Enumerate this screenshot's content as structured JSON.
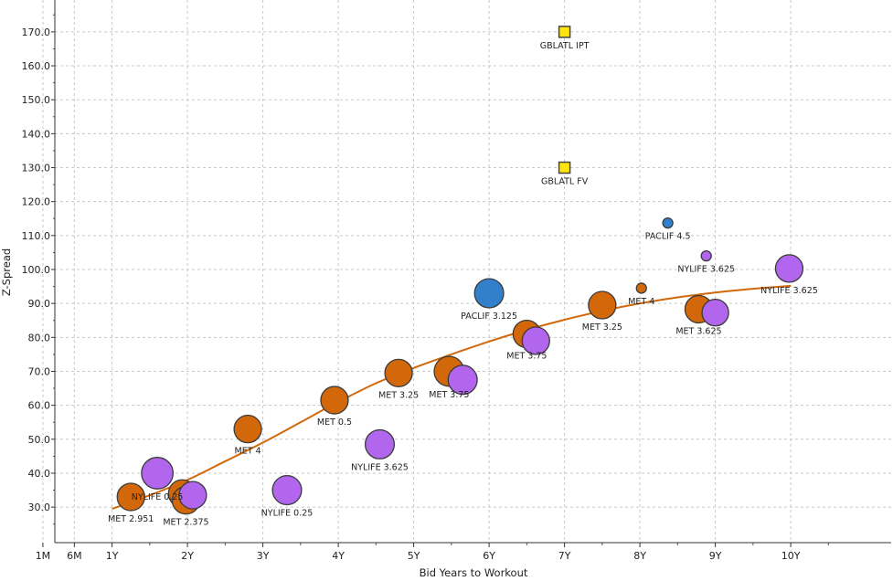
{
  "chart_data": {
    "type": "scatter",
    "title": "",
    "xlabel": "Bid Years to Workout",
    "ylabel": "Z-Spread",
    "ylim": [
      20,
      180
    ],
    "xlim": [
      0,
      10.9
    ],
    "x_ticks": [
      {
        "value": 0.083,
        "label": "1M"
      },
      {
        "value": 0.5,
        "label": "6M"
      },
      {
        "value": 1,
        "label": "1Y"
      },
      {
        "value": 2,
        "label": "2Y"
      },
      {
        "value": 3,
        "label": "3Y"
      },
      {
        "value": 4,
        "label": "4Y"
      },
      {
        "value": 5,
        "label": "5Y"
      },
      {
        "value": 6,
        "label": "6Y"
      },
      {
        "value": 7,
        "label": "7Y"
      },
      {
        "value": 8,
        "label": "8Y"
      },
      {
        "value": 9,
        "label": "9Y"
      },
      {
        "value": 10,
        "label": "10Y"
      }
    ],
    "y_ticks": [
      {
        "value": 30,
        "label": "30.0"
      },
      {
        "value": 40,
        "label": "40.0"
      },
      {
        "value": 50,
        "label": "50.0"
      },
      {
        "value": 60,
        "label": "60.0"
      },
      {
        "value": 70,
        "label": "70.0"
      },
      {
        "value": 80,
        "label": "80.0"
      },
      {
        "value": 90,
        "label": "90.0"
      },
      {
        "value": 100,
        "label": "100.0"
      },
      {
        "value": 110,
        "label": "110.0"
      },
      {
        "value": 120,
        "label": "120.0"
      },
      {
        "value": 130,
        "label": "130.0"
      },
      {
        "value": 140,
        "label": "140.0"
      },
      {
        "value": 150,
        "label": "150.0"
      },
      {
        "value": 160,
        "label": "160.0"
      },
      {
        "value": 170,
        "label": "170.0"
      }
    ],
    "grid": true,
    "colors": {
      "MET": "#d2680a",
      "NYLIFE": "#b266ee",
      "PACLIF": "#3280cc",
      "GBLATL": "#ffe40f",
      "curve": "#d2680a",
      "grid": "#c8c8c8"
    },
    "series": [
      {
        "issuer": "MET",
        "marker": "circle",
        "points": [
          {
            "x": 1.25,
            "y": 33,
            "size": 2,
            "label": "MET 2.951"
          },
          {
            "x": 1.93,
            "y": 34,
            "size": 2,
            "label": ""
          },
          {
            "x": 1.98,
            "y": 32,
            "size": 2,
            "label": "MET 2.375"
          },
          {
            "x": 2.8,
            "y": 53,
            "size": 2,
            "label": "MET 4"
          },
          {
            "x": 3.95,
            "y": 61.5,
            "size": 2,
            "label": "MET 0.5"
          },
          {
            "x": 4.8,
            "y": 69.5,
            "size": 2,
            "label": "MET 3.25"
          },
          {
            "x": 5.47,
            "y": 70,
            "size": 2.3,
            "label": "MET 3.75"
          },
          {
            "x": 6.5,
            "y": 81,
            "size": 2,
            "label": "MET 3.75"
          },
          {
            "x": 7.5,
            "y": 89.5,
            "size": 2,
            "label": "MET 3.25"
          },
          {
            "x": 8.02,
            "y": 94.5,
            "size": 1,
            "label": "MET 4"
          },
          {
            "x": 8.78,
            "y": 88.3,
            "size": 2,
            "label": "MET 3.625"
          }
        ]
      },
      {
        "issuer": "NYLIFE",
        "marker": "circle",
        "points": [
          {
            "x": 1.6,
            "y": 40,
            "size": 2.5,
            "label": "NYLIFE 0.25"
          },
          {
            "x": 2.07,
            "y": 33.5,
            "size": 2,
            "label": ""
          },
          {
            "x": 3.32,
            "y": 35,
            "size": 2.2,
            "label": "NYLIFE 0.25"
          },
          {
            "x": 4.55,
            "y": 48.5,
            "size": 2.2,
            "label": "NYLIFE 3.625"
          },
          {
            "x": 5.65,
            "y": 67.5,
            "size": 2.2,
            "label": ""
          },
          {
            "x": 6.62,
            "y": 79,
            "size": 2,
            "label": ""
          },
          {
            "x": 8.88,
            "y": 104,
            "size": 1,
            "label": "NYLIFE 3.625"
          },
          {
            "x": 9.0,
            "y": 87.3,
            "size": 1.9,
            "label": ""
          },
          {
            "x": 9.98,
            "y": 100.3,
            "size": 2,
            "label": "NYLIFE 3.625"
          }
        ]
      },
      {
        "issuer": "PACLIF",
        "marker": "circle",
        "points": [
          {
            "x": 6.0,
            "y": 93,
            "size": 2.2,
            "label": "PACLIF 3.125"
          },
          {
            "x": 8.37,
            "y": 113.7,
            "size": 1,
            "label": "PACLIF 4.5"
          }
        ]
      },
      {
        "issuer": "GBLATL",
        "marker": "square",
        "points": [
          {
            "x": 7.0,
            "y": 170,
            "size": 1,
            "label": "GBLATL IPT"
          },
          {
            "x": 7.0,
            "y": 130,
            "size": 1,
            "label": "GBLATL FV"
          }
        ]
      }
    ],
    "fit_curve": {
      "color": "#d2680a",
      "x": [
        1.0,
        1.5,
        2.0,
        2.5,
        3.0,
        3.5,
        4.0,
        4.5,
        5.0,
        5.5,
        6.0,
        6.5,
        7.0,
        7.5,
        8.0,
        8.5,
        9.0,
        9.5,
        10.0
      ],
      "y": [
        29.5,
        33.5,
        38.0,
        43.5,
        49.0,
        55.0,
        61.0,
        66.5,
        71.0,
        75.0,
        78.8,
        82.2,
        85.2,
        87.8,
        90.0,
        91.8,
        93.2,
        94.3,
        95.2
      ]
    }
  }
}
